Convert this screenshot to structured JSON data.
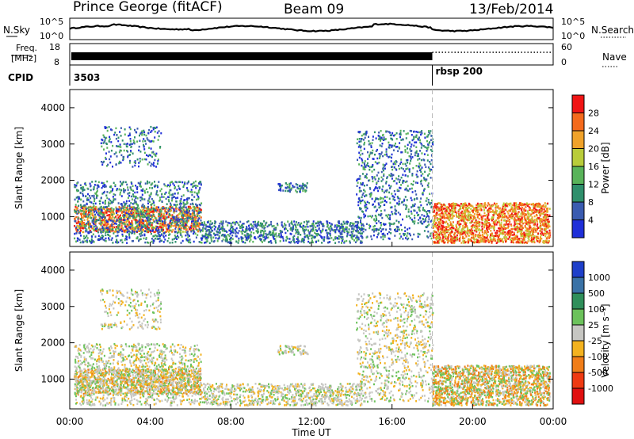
{
  "header": {
    "station": "Prince George (fitACF)",
    "beam": "Beam 09",
    "date": "13/Feb/2014"
  },
  "noise_panel": {
    "left_label": "N.Sky",
    "right_label": "N.Search",
    "left_tick_top": "10^5",
    "left_tick_bottom": "10^0",
    "right_tick_top": "10^5",
    "right_tick_bottom": "10^0"
  },
  "freq_panel": {
    "left_label_line1": "Freq.",
    "left_label_line2": "[MHz]",
    "left_tick_top": "18",
    "left_tick_bottom": "8",
    "right_tick_top": "60",
    "right_tick_bottom": "0",
    "right_label": "Nave"
  },
  "cpid_panel": {
    "label": "CPID",
    "program_1": "3503",
    "program_2": "rbsp 200",
    "switch_hour": 18.0
  },
  "chart_data": [
    {
      "type": "heatmap",
      "name": "power",
      "ylabel": "Slant Range [km]",
      "xlim": [
        0,
        24
      ],
      "ylim": [
        180,
        4500
      ],
      "yticks": [
        "1000",
        "2000",
        "3000",
        "4000"
      ],
      "colorbar_label": "Power [dB]",
      "colorbar_ticks": [
        "4",
        "8",
        "12",
        "16",
        "20",
        "24",
        "28"
      ],
      "colorbar_range": [
        0,
        32
      ],
      "colorbar_colors": [
        "#1f2fd8",
        "#3a5bb0",
        "#2f8f6c",
        "#59b35a",
        "#b9cc3a",
        "#f0a22a",
        "#f46a1c",
        "#f01414"
      ]
    },
    {
      "type": "heatmap",
      "name": "velocity",
      "ylabel": "Slant Range [km]",
      "xlim": [
        0,
        24
      ],
      "ylim": [
        180,
        4500
      ],
      "yticks": [
        "1000",
        "2000",
        "3000",
        "4000"
      ],
      "colorbar_label": "Velocity [m s⁻¹]",
      "colorbar_ticks": [
        "1000",
        "500",
        "100",
        "25",
        "-25",
        "-100",
        "-500",
        "-1000"
      ],
      "colorbar_colors": [
        "#1e3fc9",
        "#3a72a6",
        "#2f8f5a",
        "#6cc25b",
        "#c6c6c2",
        "#f3b21f",
        "#f07d18",
        "#ef3a12",
        "#e01010"
      ]
    }
  ],
  "xaxis": {
    "label": "Time UT",
    "ticks": [
      "00:00",
      "04:00",
      "08:00",
      "12:00",
      "16:00",
      "20:00",
      "00:00"
    ]
  }
}
